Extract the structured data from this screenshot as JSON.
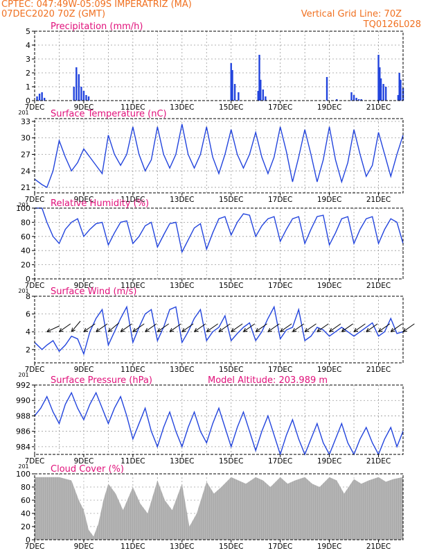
{
  "header": {
    "station": "CPTEC:   047:49W-05:09S   IMPERATRIZ (MA)",
    "run": "07DEC2020 70Z (GMT)",
    "grid_note": "Vertical Grid Line: 70Z",
    "code": "TQ0126L028",
    "altitude": "Model Altitude: 203.989 m",
    "header_color": "#f07020"
  },
  "colors": {
    "title": "#e0107a",
    "line": "#2244dd",
    "bar": "#2244dd",
    "cloud": "#a9a9a9",
    "arrow": "#000000",
    "grid": "#999999"
  },
  "x_axis": {
    "labels": [
      "7DEC",
      "9DEC",
      "11DEC",
      "13DEC",
      "15DEC",
      "17DEC",
      "19DEC",
      "21DEC"
    ],
    "label_days": [
      0,
      2,
      4,
      6,
      8,
      10,
      12,
      14
    ],
    "start": "07DEC2020 06Z",
    "end": "22DEC2020 06Z",
    "grid_days": [
      0,
      1,
      2,
      3,
      4,
      5,
      6,
      7,
      8,
      9,
      10,
      11,
      12,
      13,
      14,
      15
    ],
    "cut_label": "201"
  },
  "chart_data": [
    {
      "type": "bar",
      "title": "Precipitation (mm/h)",
      "ylim": [
        0,
        5
      ],
      "yticks": [
        0,
        1,
        2,
        3,
        4,
        5
      ],
      "x_days": [
        0.1,
        0.2,
        0.3,
        0.4,
        1.6,
        1.7,
        1.8,
        1.9,
        2.0,
        2.1,
        2.2,
        8.0,
        8.05,
        8.15,
        8.3,
        9.1,
        9.15,
        9.2,
        9.3,
        9.4,
        11.9,
        12.3,
        12.9,
        13.0,
        13.1,
        13.2,
        13.3,
        14.0,
        14.05,
        14.1,
        14.2,
        14.3,
        14.8,
        14.85,
        14.9,
        15.0
      ],
      "values": [
        0.3,
        0.5,
        0.6,
        0.2,
        1.0,
        2.4,
        1.9,
        1.0,
        0.7,
        0.4,
        0.3,
        2.7,
        2.2,
        1.2,
        0.6,
        0.7,
        3.3,
        1.5,
        0.8,
        0.3,
        1.7,
        0.1,
        0.6,
        0.4,
        0.2,
        0.1,
        0.1,
        3.3,
        2.4,
        1.6,
        1.2,
        1.0,
        0.4,
        2.0,
        1.5,
        0.9
      ]
    },
    {
      "type": "line",
      "title": "Surface Temperature (nC)",
      "ylim": [
        20,
        33.5
      ],
      "yticks": [
        21,
        24,
        27,
        30,
        33
      ],
      "x_days": [
        0,
        0.3,
        0.5,
        0.75,
        1.0,
        1.25,
        1.5,
        1.75,
        2.0,
        2.25,
        2.5,
        2.75,
        3.0,
        3.25,
        3.5,
        3.75,
        4.0,
        4.25,
        4.5,
        4.75,
        5.0,
        5.25,
        5.5,
        5.75,
        6.0,
        6.25,
        6.5,
        6.75,
        7.0,
        7.25,
        7.5,
        7.75,
        8.0,
        8.25,
        8.5,
        8.75,
        9.0,
        9.25,
        9.5,
        9.75,
        10.0,
        10.25,
        10.5,
        10.75,
        11.0,
        11.25,
        11.5,
        11.75,
        12.0,
        12.25,
        12.5,
        12.75,
        13.0,
        13.25,
        13.5,
        13.75,
        14.0,
        14.25,
        14.5,
        14.75,
        15.0
      ],
      "values": [
        22.5,
        21.5,
        21.0,
        24.0,
        29.5,
        26.5,
        24.0,
        25.5,
        28.0,
        26.5,
        25.0,
        23.5,
        30.5,
        27.0,
        25.0,
        27.0,
        32.0,
        27.0,
        24.0,
        26.0,
        32.0,
        27.0,
        24.5,
        27.0,
        32.5,
        27.0,
        24.5,
        27.0,
        32.0,
        26.5,
        23.5,
        27.0,
        31.5,
        27.0,
        24.5,
        27.0,
        31.0,
        26.5,
        23.5,
        26.5,
        32.0,
        27.5,
        22.0,
        26.5,
        31.5,
        27.0,
        22.0,
        26.0,
        32.0,
        26.0,
        22.0,
        25.5,
        31.5,
        27.0,
        23.0,
        25.0,
        31.0,
        27.0,
        23.0,
        27.0,
        30.5
      ]
    },
    {
      "type": "line",
      "title": "Relative Humidity (%)",
      "ylim": [
        0,
        100
      ],
      "yticks": [
        0,
        20,
        40,
        60,
        80,
        100
      ],
      "x_days": [
        0,
        0.3,
        0.5,
        0.75,
        1.0,
        1.25,
        1.5,
        1.75,
        2.0,
        2.25,
        2.5,
        2.75,
        3.0,
        3.25,
        3.5,
        3.75,
        4.0,
        4.25,
        4.5,
        4.75,
        5.0,
        5.25,
        5.5,
        5.75,
        6.0,
        6.25,
        6.5,
        6.75,
        7.0,
        7.25,
        7.5,
        7.75,
        8.0,
        8.25,
        8.5,
        8.75,
        9.0,
        9.25,
        9.5,
        9.75,
        10.0,
        10.25,
        10.5,
        10.75,
        11.0,
        11.25,
        11.5,
        11.75,
        12.0,
        12.25,
        12.5,
        12.75,
        13.0,
        13.25,
        13.5,
        13.75,
        14.0,
        14.25,
        14.5,
        14.75,
        15.0
      ],
      "values": [
        100,
        100,
        80,
        60,
        50,
        70,
        80,
        85,
        60,
        70,
        78,
        80,
        48,
        65,
        80,
        82,
        50,
        60,
        75,
        80,
        45,
        62,
        78,
        80,
        38,
        55,
        72,
        78,
        42,
        65,
        85,
        88,
        62,
        80,
        92,
        90,
        60,
        75,
        85,
        88,
        53,
        70,
        85,
        88,
        50,
        70,
        88,
        90,
        48,
        65,
        85,
        88,
        50,
        70,
        85,
        88,
        50,
        70,
        85,
        80,
        50
      ]
    },
    {
      "type": "line",
      "title": "Surface Wind (m/s)",
      "ylim": [
        0.5,
        8
      ],
      "yticks": [
        2,
        4,
        6,
        8
      ],
      "x_days": [
        0,
        0.3,
        0.5,
        0.75,
        1.0,
        1.25,
        1.5,
        1.75,
        2.0,
        2.25,
        2.5,
        2.75,
        3.0,
        3.25,
        3.5,
        3.75,
        4.0,
        4.25,
        4.5,
        4.75,
        5.0,
        5.25,
        5.5,
        5.75,
        6.0,
        6.25,
        6.5,
        6.75,
        7.0,
        7.25,
        7.5,
        7.75,
        8.0,
        8.25,
        8.5,
        8.75,
        9.0,
        9.25,
        9.5,
        9.75,
        10.0,
        10.25,
        10.5,
        10.75,
        11.0,
        11.25,
        11.5,
        11.75,
        12.0,
        12.25,
        12.5,
        12.75,
        13.0,
        13.25,
        13.5,
        13.75,
        14.0,
        14.25,
        14.5,
        14.75,
        15.0
      ],
      "values": [
        2.8,
        2.0,
        2.5,
        3.0,
        1.8,
        2.5,
        3.5,
        3.2,
        1.5,
        4.0,
        5.5,
        6.5,
        2.5,
        4.0,
        5.5,
        6.8,
        2.8,
        4.5,
        6.0,
        6.5,
        3.0,
        4.5,
        6.5,
        6.8,
        2.8,
        4.0,
        5.5,
        6.5,
        3.0,
        4.0,
        4.5,
        5.8,
        3.0,
        3.8,
        4.5,
        5.0,
        3.0,
        4.0,
        5.5,
        6.8,
        3.2,
        4.2,
        4.5,
        6.5,
        3.0,
        3.5,
        4.5,
        4.2,
        3.5,
        4.0,
        4.5,
        4.0,
        3.5,
        4.0,
        4.5,
        5.0,
        3.5,
        4.0,
        5.5,
        3.8,
        4.0
      ],
      "arrow_days": [
        0.5,
        1.0,
        1.5,
        2.0,
        2.5,
        3.0,
        3.5,
        4.0,
        4.5,
        5.0,
        5.5,
        6.0,
        6.5,
        7.0,
        7.5,
        8.0,
        8.5,
        9.0,
        9.5,
        10.0,
        10.5,
        11.0,
        11.5,
        12.0,
        12.5,
        13.0,
        13.5,
        14.0,
        14.5,
        15.0
      ],
      "arrow_to_deg": [
        205,
        215,
        230,
        215,
        215,
        220,
        215,
        215,
        215,
        215,
        215,
        215,
        215,
        215,
        215,
        215,
        215,
        215,
        215,
        215,
        215,
        215,
        215,
        215,
        215,
        215,
        215,
        215,
        215,
        215
      ]
    },
    {
      "type": "line",
      "title": "Surface Pressure (hPa)",
      "ylim": [
        983,
        992
      ],
      "yticks": [
        984,
        986,
        988,
        990,
        992
      ],
      "x_days": [
        0,
        0.25,
        0.5,
        0.75,
        1.0,
        1.25,
        1.5,
        1.75,
        2.0,
        2.25,
        2.5,
        2.75,
        3.0,
        3.25,
        3.5,
        3.75,
        4.0,
        4.25,
        4.5,
        4.75,
        5.0,
        5.25,
        5.5,
        5.75,
        6.0,
        6.25,
        6.5,
        6.75,
        7.0,
        7.25,
        7.5,
        7.75,
        8.0,
        8.25,
        8.5,
        8.75,
        9.0,
        9.25,
        9.5,
        9.75,
        10.0,
        10.25,
        10.5,
        10.75,
        11.0,
        11.25,
        11.5,
        11.75,
        12.0,
        12.25,
        12.5,
        12.75,
        13.0,
        13.25,
        13.5,
        13.75,
        14.0,
        14.25,
        14.5,
        14.75,
        15.0
      ],
      "values": [
        988.0,
        989.0,
        990.5,
        988.5,
        987.0,
        989.5,
        991.0,
        989.0,
        987.5,
        989.5,
        991.0,
        989.0,
        987.0,
        989.0,
        990.5,
        988.0,
        985.0,
        987.0,
        989.0,
        986.0,
        984.0,
        986.5,
        988.5,
        986.0,
        984.0,
        986.5,
        988.5,
        986.0,
        984.5,
        987.0,
        989.0,
        986.5,
        984.0,
        986.5,
        988.5,
        986.0,
        983.5,
        986.0,
        988.0,
        985.5,
        983.0,
        985.5,
        987.5,
        985.0,
        983.0,
        985.0,
        987.0,
        984.5,
        983.0,
        985.0,
        987.0,
        984.5,
        983.0,
        985.0,
        986.5,
        984.5,
        983.0,
        985.0,
        986.5,
        984.0,
        986.0
      ]
    },
    {
      "type": "area",
      "title": "Cloud Cover (%)",
      "ylim": [
        0,
        100
      ],
      "yticks": [
        0,
        20,
        40,
        60,
        80,
        100
      ],
      "x_days": [
        0,
        0.5,
        1.0,
        1.5,
        1.8,
        2.0,
        2.2,
        2.4,
        2.6,
        2.8,
        3.0,
        3.3,
        3.6,
        4.0,
        4.3,
        4.6,
        5.0,
        5.3,
        5.6,
        6.0,
        6.3,
        6.6,
        7.0,
        7.3,
        7.6,
        8.0,
        8.3,
        8.6,
        9.0,
        9.3,
        9.6,
        10.0,
        10.3,
        10.6,
        11.0,
        11.3,
        11.6,
        12.0,
        12.3,
        12.6,
        13.0,
        13.3,
        13.6,
        14.0,
        14.3,
        14.6,
        15.0
      ],
      "values": [
        95,
        95,
        95,
        90,
        60,
        45,
        15,
        5,
        25,
        60,
        85,
        70,
        45,
        80,
        55,
        40,
        90,
        60,
        45,
        85,
        20,
        40,
        88,
        70,
        80,
        95,
        90,
        85,
        95,
        90,
        80,
        95,
        85,
        90,
        95,
        85,
        80,
        95,
        90,
        70,
        92,
        85,
        90,
        95,
        88,
        92,
        95
      ]
    }
  ]
}
